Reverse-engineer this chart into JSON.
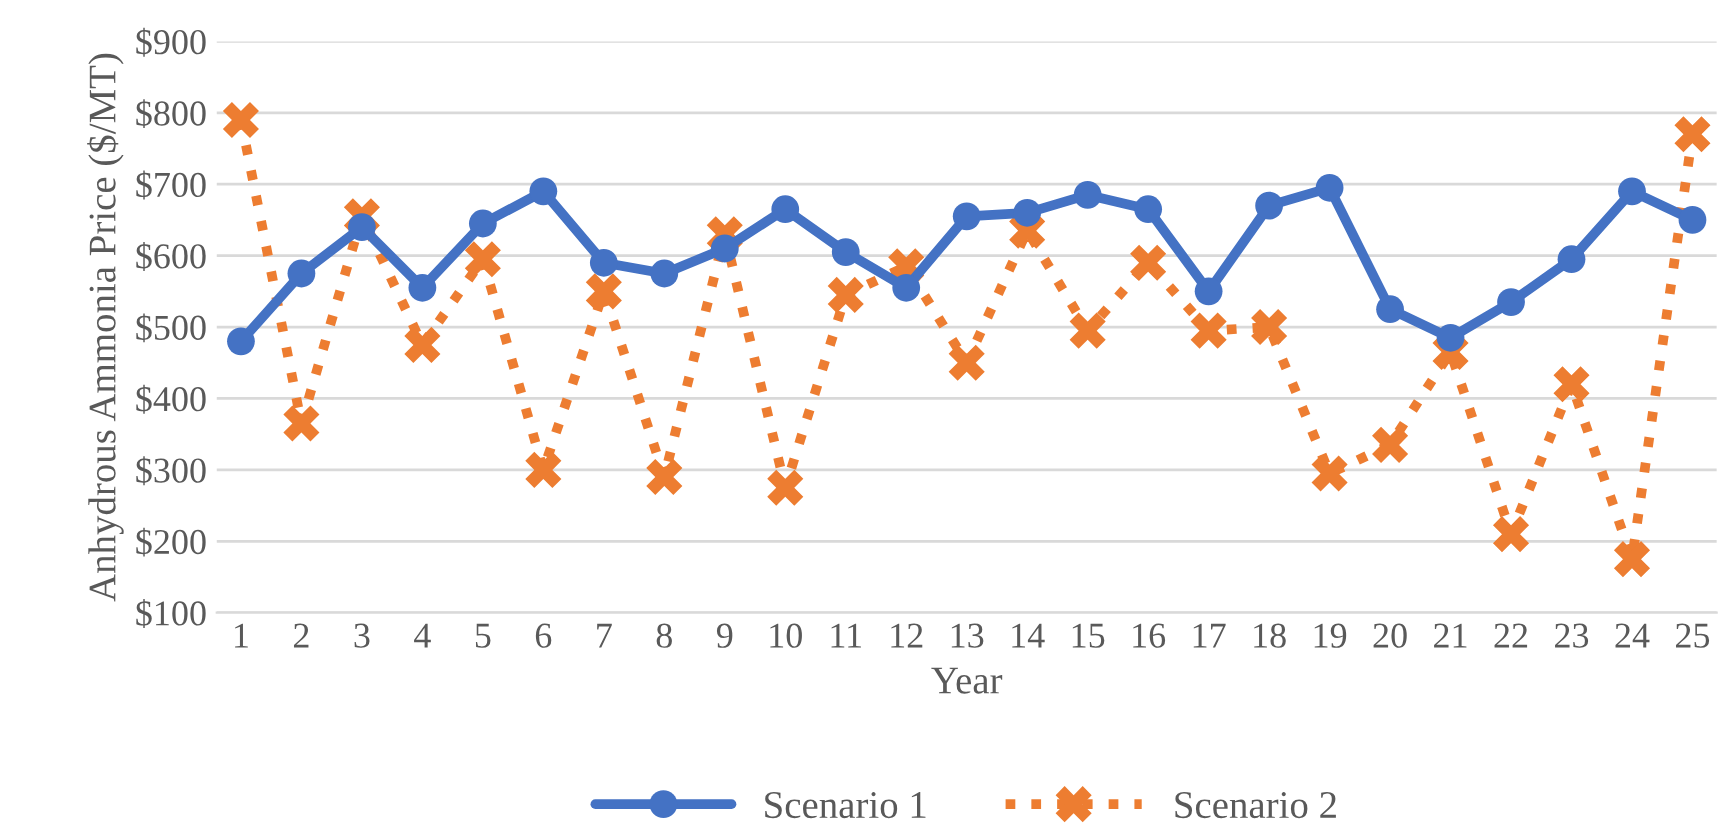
{
  "chart_data": {
    "type": "line",
    "xlabel": "Year",
    "ylabel": "Anhydrous Ammonia Price ($/MT)",
    "categories": [
      "1",
      "2",
      "3",
      "4",
      "5",
      "6",
      "7",
      "8",
      "9",
      "10",
      "11",
      "12",
      "13",
      "14",
      "15",
      "16",
      "17",
      "18",
      "19",
      "20",
      "21",
      "22",
      "23",
      "24",
      "25"
    ],
    "series": [
      {
        "name": "Scenario 1",
        "color": "#4472c4",
        "marker": "circle",
        "line_style": "solid",
        "values": [
          480,
          575,
          640,
          555,
          645,
          690,
          590,
          575,
          610,
          665,
          605,
          555,
          655,
          660,
          685,
          665,
          550,
          670,
          695,
          525,
          485,
          535,
          595,
          690,
          650
        ]
      },
      {
        "name": "Scenario 2",
        "color": "#ed7d31",
        "marker": "cross",
        "line_style": "dotted",
        "values": [
          790,
          365,
          655,
          475,
          595,
          300,
          550,
          290,
          630,
          275,
          545,
          585,
          450,
          635,
          495,
          590,
          495,
          500,
          295,
          335,
          465,
          210,
          420,
          175,
          770
        ]
      }
    ],
    "ylim": [
      100,
      900
    ],
    "yticks": [
      {
        "value": 100,
        "label": "$100"
      },
      {
        "value": 200,
        "label": "$200"
      },
      {
        "value": 300,
        "label": "$300"
      },
      {
        "value": 400,
        "label": "$400"
      },
      {
        "value": 500,
        "label": "$500"
      },
      {
        "value": 600,
        "label": "$600"
      },
      {
        "value": 700,
        "label": "$700"
      },
      {
        "value": 800,
        "label": "$800"
      },
      {
        "value": 900,
        "label": "$900"
      }
    ],
    "grid": "y",
    "legend": "bottom"
  }
}
